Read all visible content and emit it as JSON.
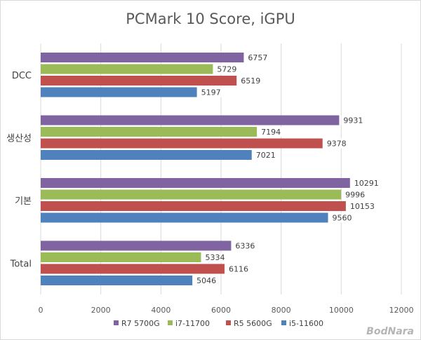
{
  "chart_data": {
    "type": "bar",
    "orientation": "horizontal",
    "title": "PCMark 10 Score, iGPU",
    "categories": [
      "DCC",
      "생산성",
      "기본",
      "Total"
    ],
    "series": [
      {
        "name": "R7 5700G",
        "color": "#8064a2",
        "values": [
          6757,
          9931,
          10291,
          6336
        ]
      },
      {
        "name": "i7-11700",
        "color": "#9bbb59",
        "values": [
          5729,
          7194,
          9996,
          5334
        ]
      },
      {
        "name": "R5 5600G",
        "color": "#c0504d",
        "values": [
          6519,
          9378,
          10153,
          6116
        ]
      },
      {
        "name": "i5-11600",
        "color": "#4f81bd",
        "values": [
          5197,
          7021,
          9560,
          5046
        ]
      }
    ],
    "xlim": [
      0,
      12000
    ],
    "xticks": [
      "0",
      "2000",
      "4000",
      "6000",
      "8000",
      "10000",
      "12000"
    ],
    "grid": true,
    "legend_position": "bottom",
    "data_labels": true
  },
  "watermark": "BodNara"
}
